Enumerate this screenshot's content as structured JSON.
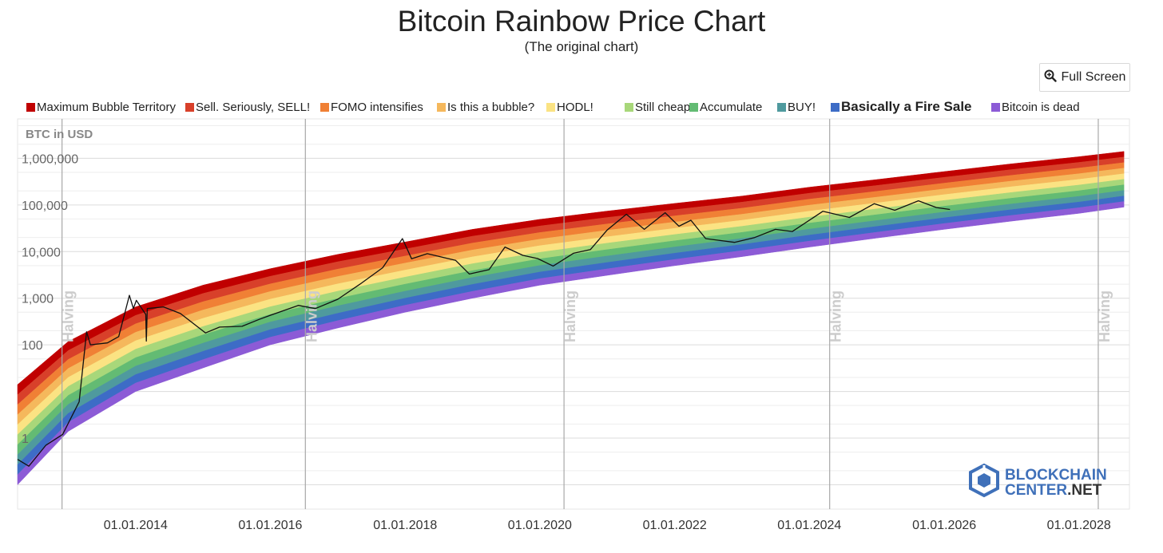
{
  "title": "Bitcoin Rainbow Price Chart",
  "subtitle": "(The original chart)",
  "fullscreen": {
    "label": "Full Screen",
    "icon": "magnifier-icon"
  },
  "watermark": {
    "line1": "BLOCKCHAIN",
    "line2": "CENTER",
    "line2_suffix": ".NET"
  },
  "chart_data": {
    "type": "area",
    "title": "Bitcoin Rainbow Price Chart",
    "subtitle": "(The original chart)",
    "ylabel": "BTC in USD",
    "yscale": "log",
    "ylim": [
      0.03,
      7000000
    ],
    "xlim": [
      "2012-04-01",
      "2028-10-01"
    ],
    "x_ticks": [
      "01.01.2014",
      "01.01.2016",
      "01.01.2018",
      "01.01.2020",
      "01.01.2022",
      "01.01.2024",
      "01.01.2026",
      "01.01.2028"
    ],
    "y_ticks": [
      {
        "value": 1,
        "label": "1"
      },
      {
        "value": 100,
        "label": "100"
      },
      {
        "value": 1000,
        "label": "1,000"
      },
      {
        "value": 10000,
        "label": "10,000"
      },
      {
        "value": 100000,
        "label": "100,000"
      },
      {
        "value": 1000000,
        "label": "1,000,000"
      }
    ],
    "halvings": [
      {
        "date": "2012-11-28",
        "label": "Halving"
      },
      {
        "date": "2016-07-09",
        "label": "Halving"
      },
      {
        "date": "2020-05-11",
        "label": "Halving"
      },
      {
        "date": "2024-04-20",
        "label": "Halving"
      },
      {
        "date": "2028-04-15",
        "label": "Halving"
      }
    ],
    "bands": [
      {
        "name": "Maximum Bubble Territory",
        "color": "#c00000"
      },
      {
        "name": "Sell. Seriously, SELL!",
        "color": "#d8402a"
      },
      {
        "name": "FOMO intensifies",
        "color": "#f08035"
      },
      {
        "name": "Is this a bubble?",
        "color": "#f5b85c"
      },
      {
        "name": "HODL!",
        "color": "#fbe383"
      },
      {
        "name": "Still cheap",
        "color": "#a8d77a"
      },
      {
        "name": "Accumulate",
        "color": "#63bb73"
      },
      {
        "name": "BUY!",
        "color": "#4f9a9e"
      },
      {
        "name": "Basically a Fire Sale",
        "color": "#3d6cc6"
      },
      {
        "name": "Bitcoin is dead",
        "color": "#8c5bd6"
      }
    ],
    "legend_placement": "top",
    "highlighted_legend_item": "Basically a Fire Sale",
    "grid": true,
    "band_bounds": [
      {
        "date": "2012-04-01",
        "lower": 0.1,
        "upper": 14
      },
      {
        "date": "2013-01-01",
        "lower": 1.4,
        "upper": 118
      },
      {
        "date": "2014-01-01",
        "lower": 10,
        "upper": 650
      },
      {
        "date": "2015-01-01",
        "lower": 32,
        "upper": 1900
      },
      {
        "date": "2016-01-01",
        "lower": 100,
        "upper": 4300
      },
      {
        "date": "2017-01-01",
        "lower": 230,
        "upper": 8700
      },
      {
        "date": "2018-01-01",
        "lower": 500,
        "upper": 16000
      },
      {
        "date": "2019-01-01",
        "lower": 1000,
        "upper": 30000
      },
      {
        "date": "2020-01-01",
        "lower": 1900,
        "upper": 49000
      },
      {
        "date": "2021-01-01",
        "lower": 3100,
        "upper": 74000
      },
      {
        "date": "2022-01-01",
        "lower": 5000,
        "upper": 108000
      },
      {
        "date": "2023-01-01",
        "lower": 7800,
        "upper": 155000
      },
      {
        "date": "2024-01-01",
        "lower": 12500,
        "upper": 240000
      },
      {
        "date": "2025-01-01",
        "lower": 19500,
        "upper": 350000
      },
      {
        "date": "2026-01-01",
        "lower": 30000,
        "upper": 520000
      },
      {
        "date": "2027-01-01",
        "lower": 45000,
        "upper": 760000
      },
      {
        "date": "2028-01-01",
        "lower": 66000,
        "upper": 1080000
      },
      {
        "date": "2028-09-01",
        "lower": 90000,
        "upper": 1400000
      }
    ],
    "price": [
      {
        "date": "2012-04-01",
        "value": 0.35
      },
      {
        "date": "2012-06-01",
        "value": 0.25
      },
      {
        "date": "2012-09-01",
        "value": 0.7
      },
      {
        "date": "2012-12-01",
        "value": 1.2
      },
      {
        "date": "2013-03-01",
        "value": 6
      },
      {
        "date": "2013-04-10",
        "value": 190
      },
      {
        "date": "2013-05-01",
        "value": 100
      },
      {
        "date": "2013-08-01",
        "value": 110
      },
      {
        "date": "2013-10-01",
        "value": 150
      },
      {
        "date": "2013-11-28",
        "value": 1150
      },
      {
        "date": "2013-12-20",
        "value": 600
      },
      {
        "date": "2014-01-05",
        "value": 900
      },
      {
        "date": "2014-02-25",
        "value": 450
      },
      {
        "date": "2014-02-28",
        "value": 120
      },
      {
        "date": "2014-03-05",
        "value": 600
      },
      {
        "date": "2014-06-01",
        "value": 650
      },
      {
        "date": "2014-09-01",
        "value": 470
      },
      {
        "date": "2015-01-15",
        "value": 180
      },
      {
        "date": "2015-04-01",
        "value": 240
      },
      {
        "date": "2015-08-01",
        "value": 250
      },
      {
        "date": "2015-11-01",
        "value": 350
      },
      {
        "date": "2016-01-01",
        "value": 430
      },
      {
        "date": "2016-06-01",
        "value": 700
      },
      {
        "date": "2016-09-01",
        "value": 600
      },
      {
        "date": "2017-01-01",
        "value": 950
      },
      {
        "date": "2017-05-01",
        "value": 2000
      },
      {
        "date": "2017-09-01",
        "value": 4500
      },
      {
        "date": "2017-12-17",
        "value": 19000
      },
      {
        "date": "2018-02-05",
        "value": 7000
      },
      {
        "date": "2018-05-01",
        "value": 9000
      },
      {
        "date": "2018-10-01",
        "value": 6500
      },
      {
        "date": "2018-12-15",
        "value": 3300
      },
      {
        "date": "2019-04-01",
        "value": 4100
      },
      {
        "date": "2019-06-26",
        "value": 12500
      },
      {
        "date": "2019-10-01",
        "value": 8300
      },
      {
        "date": "2019-12-20",
        "value": 7100
      },
      {
        "date": "2020-03-13",
        "value": 4900
      },
      {
        "date": "2020-07-01",
        "value": 9200
      },
      {
        "date": "2020-10-01",
        "value": 11000
      },
      {
        "date": "2020-12-31",
        "value": 29000
      },
      {
        "date": "2021-04-14",
        "value": 63000
      },
      {
        "date": "2021-07-20",
        "value": 30000
      },
      {
        "date": "2021-11-10",
        "value": 68000
      },
      {
        "date": "2022-01-24",
        "value": 35000
      },
      {
        "date": "2022-03-30",
        "value": 47000
      },
      {
        "date": "2022-06-18",
        "value": 19000
      },
      {
        "date": "2022-11-21",
        "value": 15800
      },
      {
        "date": "2023-03-10",
        "value": 20000
      },
      {
        "date": "2023-07-01",
        "value": 30000
      },
      {
        "date": "2023-10-01",
        "value": 27000
      },
      {
        "date": "2024-03-14",
        "value": 73000
      },
      {
        "date": "2024-08-05",
        "value": 54000
      },
      {
        "date": "2024-12-17",
        "value": 106000
      },
      {
        "date": "2025-04-08",
        "value": 77000
      },
      {
        "date": "2025-08-14",
        "value": 123000
      },
      {
        "date": "2025-11-20",
        "value": 88000
      },
      {
        "date": "2026-02-01",
        "value": 80000
      }
    ]
  }
}
